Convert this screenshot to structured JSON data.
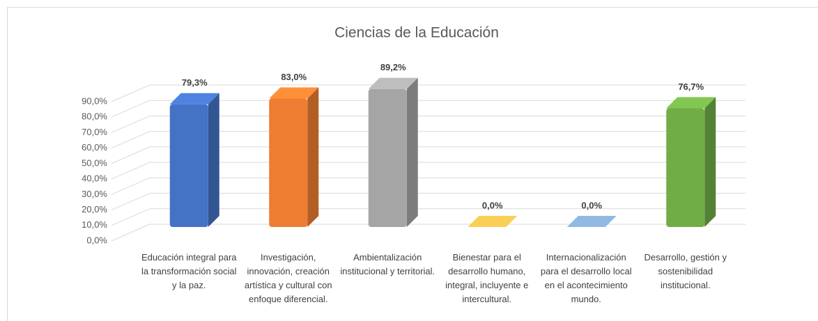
{
  "chart_data": {
    "type": "bar3d",
    "title": "Ciencias de la Educación",
    "categories": [
      "Educación integral para la transformación social y la paz.",
      "Investigación, innovación, creación artística y cultural con enfoque diferencial.",
      "Ambientalización institucional y territorial.",
      "Bienestar para el desarrollo humano, integral, incluyente e intercultural.",
      "Internacionalización para el desarrollo local en el acontecimiento mundo.",
      "Desarrollo, gestión y sostenibilidad institucional."
    ],
    "values": [
      79.3,
      83.0,
      89.2,
      0.0,
      0.0,
      76.7
    ],
    "value_labels": [
      "79,3%",
      "83,0%",
      "89,2%",
      "0,0%",
      "0,0%",
      "76,7%"
    ],
    "colors": [
      "#4472c4",
      "#ed7d31",
      "#a5a5a5",
      "#d9b44a",
      "#7ea1c6",
      "#70ad47"
    ],
    "ylim": [
      0,
      90
    ],
    "yticks": [
      {
        "value": 0,
        "label": "0,0%"
      },
      {
        "value": 10,
        "label": "10,0%"
      },
      {
        "value": 20,
        "label": "20,0%"
      },
      {
        "value": 30,
        "label": "30,0%"
      },
      {
        "value": 40,
        "label": "40,0%"
      },
      {
        "value": 50,
        "label": "50,0%"
      },
      {
        "value": 60,
        "label": "60,0%"
      },
      {
        "value": 70,
        "label": "70,0%"
      },
      {
        "value": 80,
        "label": "80,0%"
      },
      {
        "value": 90,
        "label": "90,0%"
      }
    ],
    "grid": true
  }
}
